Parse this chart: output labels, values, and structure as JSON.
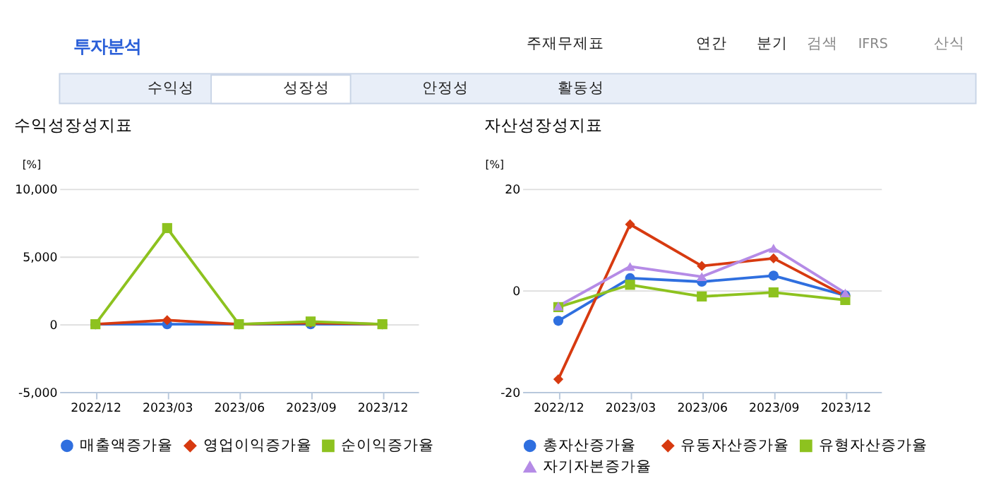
{
  "chart_data": [
    {
      "type": "other",
      "annotations": [
        "투자분석",
        "주재무제표",
        "연간",
        "분기",
        "검색",
        "IFRS",
        "산식",
        "수익성",
        "성장성",
        "안정성",
        "활동성"
      ]
    },
    {
      "type": "line",
      "title": "수익성장성지표",
      "ylabel": "[%]",
      "categories": [
        "2022/12",
        "2023/03",
        "2023/06",
        "2023/09",
        "2023/12"
      ],
      "ylim": [
        -5000,
        10000
      ],
      "yticks": [
        {
          "value": -5000,
          "label": "-5,000"
        },
        0,
        {
          "value": 5000,
          "label": "5,000"
        },
        {
          "value": 10000,
          "label": "10,000"
        }
      ],
      "grid": "y",
      "legend": "bottom",
      "series": [
        {
          "name": "매출액증가율",
          "color": "#2f6fdf",
          "marker": "circle",
          "values": [
            0,
            0,
            0,
            0,
            0
          ]
        },
        {
          "name": "영업이익증가율",
          "color": "#d73a10",
          "marker": "diamond",
          "values": [
            0,
            300,
            0,
            100,
            0
          ]
        },
        {
          "name": "순이익증가율",
          "color": "#8dc21f",
          "marker": "square",
          "values": [
            0,
            7100,
            0,
            200,
            0
          ]
        }
      ]
    },
    {
      "type": "line",
      "title": "자산성장성지표",
      "ylabel": "[%]",
      "categories": [
        "2022/12",
        "2023/03",
        "2023/06",
        "2023/09",
        "2023/12"
      ],
      "ylim": [
        -20,
        20
      ],
      "yticks": [
        -20,
        0,
        20
      ],
      "grid": "y",
      "legend": "bottom",
      "series": [
        {
          "name": "총자산증가율",
          "color": "#2f6fdf",
          "marker": "circle",
          "values": [
            -6.0,
            2.4,
            1.7,
            2.9,
            -1.0
          ]
        },
        {
          "name": "유동자산증가율",
          "color": "#d73a10",
          "marker": "diamond",
          "values": [
            -17.5,
            13.0,
            4.8,
            6.3,
            -1.1
          ]
        },
        {
          "name": "유형자산증가율",
          "color": "#8dc21f",
          "marker": "square",
          "values": [
            -3.3,
            1.1,
            -1.2,
            -0.4,
            -1.9
          ]
        },
        {
          "name": "자기자본증가율",
          "color": "#b58be6",
          "marker": "triangle",
          "values": [
            -3.1,
            4.7,
            2.7,
            8.3,
            -0.5
          ]
        }
      ]
    }
  ]
}
